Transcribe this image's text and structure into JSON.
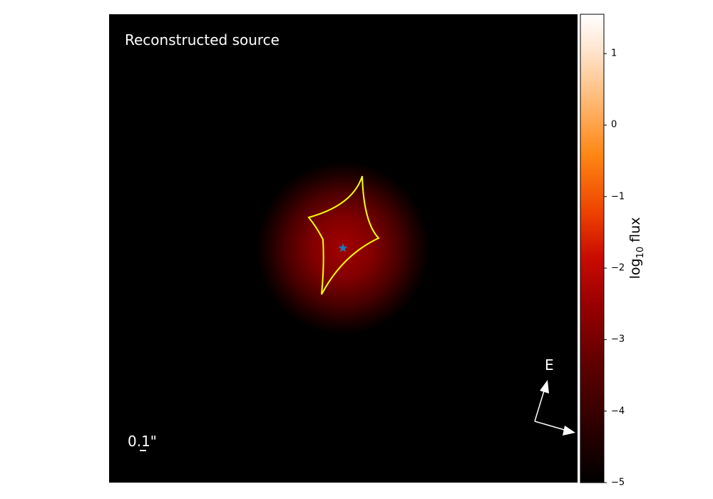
{
  "title": "Reconstructed source",
  "scale_bar": {
    "label": "0.1\"",
    "value_arcsec": 0.1
  },
  "compass": {
    "east_label": "E"
  },
  "colorbar": {
    "label_main": "log",
    "label_sub": "10",
    "label_suffix": " flux",
    "colormap": "gist_heat",
    "vmin": -5,
    "vmax": 1.55,
    "ticks": [
      1,
      0,
      -1,
      -2,
      -3,
      -4,
      -5
    ],
    "tick_labels": [
      "1",
      "0",
      "−1",
      "−2",
      "−3",
      "−4",
      "−5"
    ]
  },
  "colors": {
    "background": "#000000",
    "caustic": "#ffff00",
    "star_marker": "#1f77b4",
    "text_on_image": "#ffffff"
  },
  "chart_data": {
    "type": "heatmap",
    "title": "Reconstructed source",
    "xlabel": "",
    "ylabel": "",
    "source": {
      "shape": "circular gaussian",
      "peak_log10_flux": -1.8,
      "edge_log10_flux": -5
    },
    "caustic": {
      "type": "astroid",
      "color": "#ffff00"
    },
    "marker": {
      "type": "star",
      "color": "#1f77b4"
    },
    "legend": "none",
    "grid": false
  }
}
